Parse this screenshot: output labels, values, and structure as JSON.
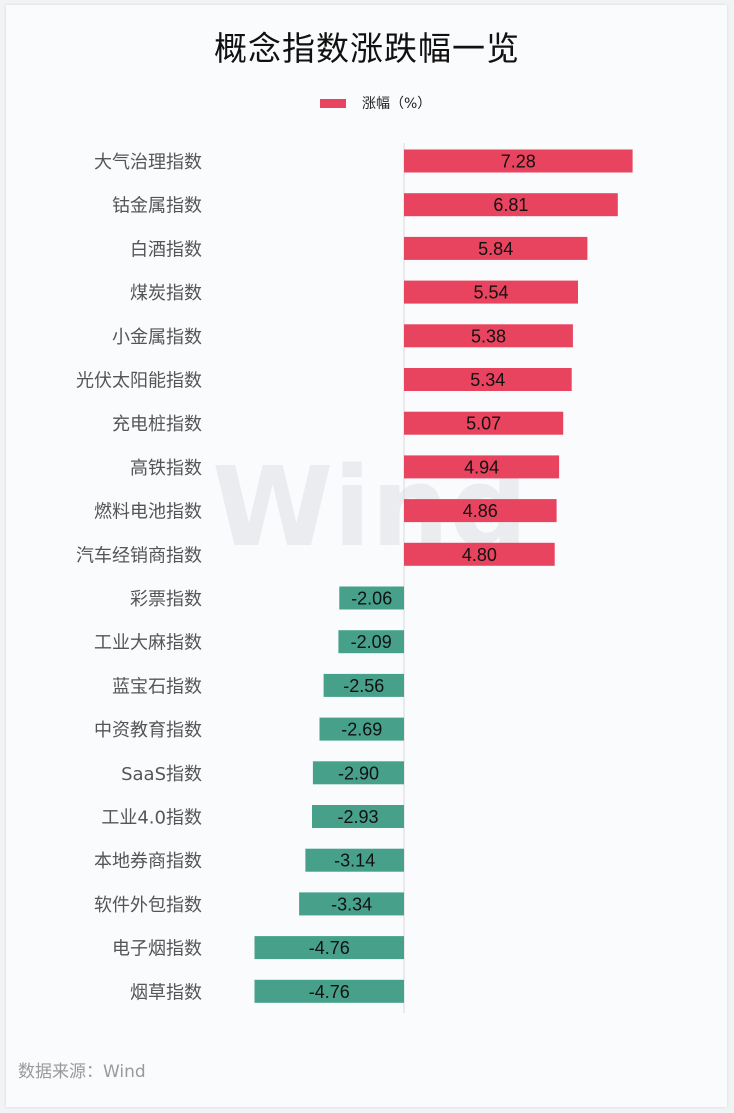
{
  "chart_data": {
    "type": "bar",
    "orientation": "horizontal",
    "title": "概念指数涨跌幅一览",
    "legend": [
      "涨幅（%）"
    ],
    "legend_position": "top",
    "categories": [
      "大气治理指数",
      "钴金属指数",
      "白酒指数",
      "煤炭指数",
      "小金属指数",
      "光伏太阳能指数",
      "充电桩指数",
      "高铁指数",
      "燃料电池指数",
      "汽车经销商指数",
      "彩票指数",
      "工业大麻指数",
      "蓝宝石指数",
      "中资教育指数",
      "SaaS指数",
      "工业4.0指数",
      "本地券商指数",
      "软件外包指数",
      "电子烟指数",
      "烟草指数"
    ],
    "series": [
      {
        "name": "涨幅（%）",
        "values": [
          7.28,
          6.81,
          5.84,
          5.54,
          5.38,
          5.34,
          5.07,
          4.94,
          4.86,
          4.8,
          -2.06,
          -2.09,
          -2.56,
          -2.69,
          -2.9,
          -2.93,
          -3.14,
          -3.34,
          -4.76,
          -4.76
        ]
      }
    ],
    "value_labels": [
      "7.28",
      "6.81",
      "5.84",
      "5.54",
      "5.38",
      "5.34",
      "5.07",
      "4.94",
      "4.86",
      "4.80",
      "-2.06",
      "-2.09",
      "-2.56",
      "-2.69",
      "-2.90",
      "-2.93",
      "-3.14",
      "-3.34",
      "-4.76",
      "-4.76"
    ],
    "grid": false,
    "colors": {
      "positive": "#e8435f",
      "negative": "#46a08a"
    }
  },
  "watermark": "Wind",
  "source": "数据来源：Wind"
}
